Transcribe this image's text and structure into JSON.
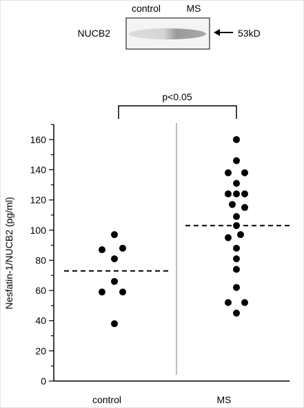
{
  "blot": {
    "protein_label": "NUCB2",
    "lane_labels": [
      "control",
      "MS"
    ],
    "size_marker": "53kD"
  },
  "significance": "p<0.05",
  "chart_data": {
    "type": "scatter",
    "ylabel": "Nesfatin-1/NUCB2  (pg/ml)",
    "xlabel": "",
    "categories": [
      "control",
      "MS"
    ],
    "ylim": [
      0,
      170
    ],
    "yticks": [
      0,
      20,
      40,
      60,
      80,
      100,
      120,
      140,
      160
    ],
    "series": [
      {
        "category": "control",
        "points": [
          {
            "offset": -0.05,
            "y": 97
          },
          {
            "offset": -0.2,
            "y": 87
          },
          {
            "offset": 0.05,
            "y": 88
          },
          {
            "offset": -0.05,
            "y": 81
          },
          {
            "offset": -0.05,
            "y": 66
          },
          {
            "offset": -0.2,
            "y": 59
          },
          {
            "offset": 0.05,
            "y": 59
          },
          {
            "offset": -0.05,
            "y": 38
          }
        ],
        "mean": 73
      },
      {
        "category": "MS",
        "points": [
          {
            "offset": 0.0,
            "y": 160
          },
          {
            "offset": 0.0,
            "y": 146
          },
          {
            "offset": -0.1,
            "y": 138
          },
          {
            "offset": 0.1,
            "y": 138
          },
          {
            "offset": 0.0,
            "y": 131
          },
          {
            "offset": -0.1,
            "y": 124
          },
          {
            "offset": 0.0,
            "y": 124
          },
          {
            "offset": 0.1,
            "y": 124
          },
          {
            "offset": -0.05,
            "y": 117
          },
          {
            "offset": 0.1,
            "y": 115
          },
          {
            "offset": 0.0,
            "y": 109
          },
          {
            "offset": 0.0,
            "y": 103
          },
          {
            "offset": -0.1,
            "y": 95
          },
          {
            "offset": 0.05,
            "y": 97
          },
          {
            "offset": 0.0,
            "y": 88
          },
          {
            "offset": 0.0,
            "y": 81
          },
          {
            "offset": 0.0,
            "y": 74
          },
          {
            "offset": 0.0,
            "y": 62
          },
          {
            "offset": -0.1,
            "y": 52
          },
          {
            "offset": 0.1,
            "y": 52
          },
          {
            "offset": 0.0,
            "y": 45
          }
        ],
        "mean": 103
      }
    ]
  }
}
